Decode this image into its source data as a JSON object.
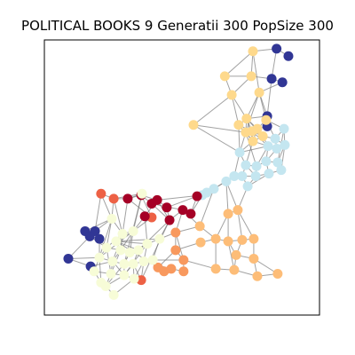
{
  "title": "POLITICAL BOOKS 9 Generatii 300 PopSize 300",
  "colors": {
    "edge": "#7a7a7a",
    "frame": "#000000",
    "background": "#ffffff",
    "palette": {
      "dark_blue": "#313695",
      "light_blue": "#c4e6f0",
      "light_orange": "#fed98c",
      "orange": "#fdbd78",
      "dark_orange": "#f8995e",
      "red_orange": "#ed6145",
      "crimson": "#a50026",
      "pale_yellow": "#f7fcd7"
    }
  },
  "chart_data": {
    "type": "network",
    "node_count": 105,
    "communities": [
      "dark_blue",
      "light_blue",
      "light_orange",
      "orange",
      "dark_orange",
      "red_orange",
      "crimson",
      "pale_yellow"
    ],
    "xlim": [
      0,
      1
    ],
    "ylim": [
      0,
      1
    ],
    "grid": false,
    "legend": "none",
    "nodes": [
      {
        "x": 0.844,
        "y": 0.968,
        "group": "dark_blue"
      },
      {
        "x": 0.887,
        "y": 0.941,
        "group": "dark_blue"
      },
      {
        "x": 0.826,
        "y": 0.859,
        "group": "dark_blue"
      },
      {
        "x": 0.865,
        "y": 0.846,
        "group": "dark_blue"
      },
      {
        "x": 0.81,
        "y": 0.723,
        "group": "dark_blue"
      },
      {
        "x": 0.81,
        "y": 0.686,
        "group": "dark_blue"
      },
      {
        "x": 0.148,
        "y": 0.305,
        "group": "dark_blue"
      },
      {
        "x": 0.184,
        "y": 0.305,
        "group": "dark_blue"
      },
      {
        "x": 0.165,
        "y": 0.286,
        "group": "dark_blue"
      },
      {
        "x": 0.2,
        "y": 0.277,
        "group": "dark_blue"
      },
      {
        "x": 0.087,
        "y": 0.205,
        "group": "dark_blue"
      },
      {
        "x": 0.168,
        "y": 0.177,
        "group": "dark_blue"
      },
      {
        "x": 0.758,
        "y": 0.959,
        "group": "light_orange"
      },
      {
        "x": 0.656,
        "y": 0.868,
        "group": "light_orange"
      },
      {
        "x": 0.752,
        "y": 0.868,
        "group": "light_orange"
      },
      {
        "x": 0.681,
        "y": 0.8,
        "group": "light_orange"
      },
      {
        "x": 0.781,
        "y": 0.809,
        "group": "light_orange"
      },
      {
        "x": 0.542,
        "y": 0.691,
        "group": "light_orange"
      },
      {
        "x": 0.706,
        "y": 0.691,
        "group": "light_orange"
      },
      {
        "x": 0.735,
        "y": 0.714,
        "group": "light_orange"
      },
      {
        "x": 0.774,
        "y": 0.677,
        "group": "light_orange"
      },
      {
        "x": 0.755,
        "y": 0.668,
        "group": "light_orange"
      },
      {
        "x": 0.732,
        "y": 0.664,
        "group": "light_orange"
      },
      {
        "x": 0.794,
        "y": 0.65,
        "group": "light_orange"
      },
      {
        "x": 0.758,
        "y": 0.632,
        "group": "light_orange"
      },
      {
        "x": 0.806,
        "y": 0.709,
        "group": "light_orange"
      },
      {
        "x": 0.839,
        "y": 0.641,
        "group": "light_blue"
      },
      {
        "x": 0.871,
        "y": 0.677,
        "group": "light_blue"
      },
      {
        "x": 0.874,
        "y": 0.618,
        "group": "light_blue"
      },
      {
        "x": 0.845,
        "y": 0.605,
        "group": "light_blue"
      },
      {
        "x": 0.813,
        "y": 0.614,
        "group": "light_blue"
      },
      {
        "x": 0.71,
        "y": 0.591,
        "group": "light_blue"
      },
      {
        "x": 0.732,
        "y": 0.545,
        "group": "light_blue"
      },
      {
        "x": 0.771,
        "y": 0.541,
        "group": "light_blue"
      },
      {
        "x": 0.806,
        "y": 0.559,
        "group": "light_blue"
      },
      {
        "x": 0.848,
        "y": 0.555,
        "group": "light_blue"
      },
      {
        "x": 0.861,
        "y": 0.527,
        "group": "light_blue"
      },
      {
        "x": 0.69,
        "y": 0.505,
        "group": "light_blue"
      },
      {
        "x": 0.719,
        "y": 0.505,
        "group": "light_blue"
      },
      {
        "x": 0.768,
        "y": 0.505,
        "group": "light_blue"
      },
      {
        "x": 0.816,
        "y": 0.514,
        "group": "light_blue"
      },
      {
        "x": 0.661,
        "y": 0.486,
        "group": "light_blue"
      },
      {
        "x": 0.739,
        "y": 0.468,
        "group": "light_blue"
      },
      {
        "x": 0.616,
        "y": 0.459,
        "group": "light_blue"
      },
      {
        "x": 0.59,
        "y": 0.445,
        "group": "light_blue"
      },
      {
        "x": 0.574,
        "y": 0.436,
        "group": "light_blue"
      },
      {
        "x": 0.668,
        "y": 0.368,
        "group": "orange"
      },
      {
        "x": 0.703,
        "y": 0.382,
        "group": "orange"
      },
      {
        "x": 0.565,
        "y": 0.323,
        "group": "orange"
      },
      {
        "x": 0.568,
        "y": 0.264,
        "group": "orange"
      },
      {
        "x": 0.623,
        "y": 0.277,
        "group": "orange"
      },
      {
        "x": 0.668,
        "y": 0.268,
        "group": "orange"
      },
      {
        "x": 0.719,
        "y": 0.273,
        "group": "orange"
      },
      {
        "x": 0.761,
        "y": 0.277,
        "group": "orange"
      },
      {
        "x": 0.697,
        "y": 0.218,
        "group": "orange"
      },
      {
        "x": 0.761,
        "y": 0.205,
        "group": "orange"
      },
      {
        "x": 0.623,
        "y": 0.168,
        "group": "orange"
      },
      {
        "x": 0.69,
        "y": 0.164,
        "group": "orange"
      },
      {
        "x": 0.774,
        "y": 0.141,
        "group": "orange"
      },
      {
        "x": 0.848,
        "y": 0.15,
        "group": "orange"
      },
      {
        "x": 0.477,
        "y": 0.3,
        "group": "dark_orange"
      },
      {
        "x": 0.477,
        "y": 0.236,
        "group": "dark_orange"
      },
      {
        "x": 0.506,
        "y": 0.2,
        "group": "dark_orange"
      },
      {
        "x": 0.461,
        "y": 0.168,
        "group": "dark_orange"
      },
      {
        "x": 0.413,
        "y": 0.173,
        "group": "dark_orange"
      },
      {
        "x": 0.506,
        "y": 0.159,
        "group": "dark_orange"
      },
      {
        "x": 0.435,
        "y": 0.159,
        "group": "dark_orange"
      },
      {
        "x": 0.206,
        "y": 0.441,
        "group": "red_orange"
      },
      {
        "x": 0.252,
        "y": 0.423,
        "group": "red_orange"
      },
      {
        "x": 0.39,
        "y": 0.355,
        "group": "red_orange"
      },
      {
        "x": 0.352,
        "y": 0.127,
        "group": "red_orange"
      },
      {
        "x": 0.303,
        "y": 0.423,
        "group": "crimson"
      },
      {
        "x": 0.352,
        "y": 0.436,
        "group": "crimson"
      },
      {
        "x": 0.41,
        "y": 0.418,
        "group": "crimson"
      },
      {
        "x": 0.445,
        "y": 0.391,
        "group": "crimson"
      },
      {
        "x": 0.39,
        "y": 0.405,
        "group": "crimson"
      },
      {
        "x": 0.555,
        "y": 0.432,
        "group": "crimson"
      },
      {
        "x": 0.532,
        "y": 0.368,
        "group": "crimson"
      },
      {
        "x": 0.503,
        "y": 0.382,
        "group": "crimson"
      },
      {
        "x": 0.455,
        "y": 0.345,
        "group": "crimson"
      },
      {
        "x": 0.365,
        "y": 0.359,
        "group": "crimson"
      },
      {
        "x": 0.355,
        "y": 0.441,
        "group": "pale_yellow"
      },
      {
        "x": 0.245,
        "y": 0.35,
        "group": "pale_yellow"
      },
      {
        "x": 0.284,
        "y": 0.295,
        "group": "pale_yellow"
      },
      {
        "x": 0.323,
        "y": 0.305,
        "group": "pale_yellow"
      },
      {
        "x": 0.261,
        "y": 0.268,
        "group": "pale_yellow"
      },
      {
        "x": 0.226,
        "y": 0.245,
        "group": "pale_yellow"
      },
      {
        "x": 0.277,
        "y": 0.236,
        "group": "pale_yellow"
      },
      {
        "x": 0.31,
        "y": 0.227,
        "group": "pale_yellow"
      },
      {
        "x": 0.342,
        "y": 0.236,
        "group": "pale_yellow"
      },
      {
        "x": 0.374,
        "y": 0.259,
        "group": "pale_yellow"
      },
      {
        "x": 0.419,
        "y": 0.277,
        "group": "pale_yellow"
      },
      {
        "x": 0.2,
        "y": 0.209,
        "group": "pale_yellow"
      },
      {
        "x": 0.248,
        "y": 0.195,
        "group": "pale_yellow"
      },
      {
        "x": 0.29,
        "y": 0.186,
        "group": "pale_yellow"
      },
      {
        "x": 0.323,
        "y": 0.186,
        "group": "pale_yellow"
      },
      {
        "x": 0.361,
        "y": 0.195,
        "group": "pale_yellow"
      },
      {
        "x": 0.394,
        "y": 0.2,
        "group": "pale_yellow"
      },
      {
        "x": 0.181,
        "y": 0.159,
        "group": "pale_yellow"
      },
      {
        "x": 0.242,
        "y": 0.15,
        "group": "pale_yellow"
      },
      {
        "x": 0.29,
        "y": 0.145,
        "group": "pale_yellow"
      },
      {
        "x": 0.223,
        "y": 0.105,
        "group": "pale_yellow"
      },
      {
        "x": 0.326,
        "y": 0.132,
        "group": "pale_yellow"
      },
      {
        "x": 0.252,
        "y": 0.073,
        "group": "pale_yellow"
      },
      {
        "x": 0.206,
        "y": 0.118,
        "group": "pale_yellow"
      }
    ],
    "edges": [
      [
        0,
        1
      ],
      [
        0,
        2
      ],
      [
        0,
        12
      ],
      [
        2,
        3
      ],
      [
        2,
        4
      ],
      [
        2,
        14
      ],
      [
        3,
        16
      ],
      [
        4,
        5
      ],
      [
        4,
        16
      ],
      [
        4,
        19
      ],
      [
        5,
        20
      ],
      [
        5,
        25
      ],
      [
        12,
        13
      ],
      [
        12,
        14
      ],
      [
        12,
        16
      ],
      [
        13,
        15
      ],
      [
        13,
        14
      ],
      [
        14,
        15
      ],
      [
        15,
        17
      ],
      [
        15,
        18
      ],
      [
        15,
        19
      ],
      [
        16,
        19
      ],
      [
        16,
        25
      ],
      [
        17,
        22
      ],
      [
        17,
        31
      ],
      [
        18,
        19
      ],
      [
        18,
        21
      ],
      [
        18,
        22
      ],
      [
        18,
        31
      ],
      [
        19,
        20
      ],
      [
        19,
        21
      ],
      [
        19,
        22
      ],
      [
        19,
        24
      ],
      [
        20,
        21
      ],
      [
        20,
        23
      ],
      [
        20,
        24
      ],
      [
        20,
        25
      ],
      [
        21,
        22
      ],
      [
        21,
        23
      ],
      [
        21,
        24
      ],
      [
        22,
        24
      ],
      [
        22,
        31
      ],
      [
        23,
        24
      ],
      [
        23,
        26
      ],
      [
        23,
        30
      ],
      [
        24,
        30
      ],
      [
        24,
        31
      ],
      [
        24,
        32
      ],
      [
        25,
        26
      ],
      [
        25,
        27
      ],
      [
        26,
        27
      ],
      [
        26,
        28
      ],
      [
        26,
        29
      ],
      [
        27,
        28
      ],
      [
        28,
        29
      ],
      [
        28,
        35
      ],
      [
        29,
        30
      ],
      [
        29,
        34
      ],
      [
        30,
        31
      ],
      [
        30,
        33
      ],
      [
        30,
        34
      ],
      [
        31,
        32
      ],
      [
        31,
        37
      ],
      [
        32,
        33
      ],
      [
        32,
        38
      ],
      [
        33,
        34
      ],
      [
        33,
        39
      ],
      [
        34,
        35
      ],
      [
        34,
        40
      ],
      [
        35,
        36
      ],
      [
        36,
        40
      ],
      [
        37,
        38
      ],
      [
        37,
        41
      ],
      [
        38,
        39
      ],
      [
        38,
        42
      ],
      [
        39,
        40
      ],
      [
        39,
        42
      ],
      [
        40,
        42
      ],
      [
        41,
        43
      ],
      [
        42,
        47
      ],
      [
        43,
        44
      ],
      [
        44,
        45
      ],
      [
        45,
        76
      ],
      [
        37,
        43
      ],
      [
        16,
        22
      ],
      [
        18,
        24
      ],
      [
        19,
        23
      ],
      [
        22,
        33
      ],
      [
        21,
        30
      ],
      [
        32,
        39
      ],
      [
        36,
        28
      ],
      [
        27,
        35
      ],
      [
        41,
        46
      ],
      [
        46,
        47
      ],
      [
        46,
        50
      ],
      [
        46,
        51
      ],
      [
        47,
        53
      ],
      [
        47,
        52
      ],
      [
        48,
        50
      ],
      [
        48,
        60
      ],
      [
        49,
        50
      ],
      [
        49,
        61
      ],
      [
        50,
        51
      ],
      [
        50,
        56
      ],
      [
        51,
        52
      ],
      [
        51,
        54
      ],
      [
        51,
        57
      ],
      [
        52,
        53
      ],
      [
        52,
        54
      ],
      [
        53,
        55
      ],
      [
        54,
        55
      ],
      [
        54,
        57
      ],
      [
        55,
        58
      ],
      [
        55,
        59
      ],
      [
        56,
        57
      ],
      [
        56,
        62
      ],
      [
        57,
        58
      ],
      [
        58,
        59
      ],
      [
        43,
        48
      ],
      [
        41,
        47
      ],
      [
        44,
        76
      ],
      [
        45,
        77
      ],
      [
        60,
        61
      ],
      [
        60,
        62
      ],
      [
        61,
        62
      ],
      [
        62,
        65
      ],
      [
        63,
        66
      ],
      [
        64,
        66
      ],
      [
        63,
        65
      ],
      [
        60,
        91
      ],
      [
        61,
        64
      ],
      [
        64,
        97
      ],
      [
        63,
        96
      ],
      [
        67,
        68
      ],
      [
        67,
        82
      ],
      [
        68,
        71
      ],
      [
        68,
        82
      ],
      [
        68,
        83
      ],
      [
        69,
        72
      ],
      [
        69,
        80
      ],
      [
        69,
        84
      ],
      [
        70,
        95
      ],
      [
        70,
        96
      ],
      [
        71,
        72
      ],
      [
        71,
        81
      ],
      [
        71,
        83
      ],
      [
        72,
        73
      ],
      [
        72,
        75
      ],
      [
        73,
        74
      ],
      [
        73,
        79
      ],
      [
        74,
        79
      ],
      [
        75,
        78
      ],
      [
        75,
        79
      ],
      [
        76,
        77
      ],
      [
        77,
        78
      ],
      [
        78,
        79
      ],
      [
        78,
        60
      ],
      [
        79,
        91
      ],
      [
        80,
        84
      ],
      [
        80,
        90
      ],
      [
        81,
        84
      ],
      [
        82,
        83
      ],
      [
        82,
        86
      ],
      [
        82,
        6
      ],
      [
        83,
        84
      ],
      [
        83,
        86
      ],
      [
        83,
        87
      ],
      [
        84,
        85
      ],
      [
        84,
        87
      ],
      [
        84,
        88
      ],
      [
        85,
        90
      ],
      [
        85,
        91
      ],
      [
        86,
        87
      ],
      [
        86,
        92
      ],
      [
        87,
        88
      ],
      [
        87,
        93
      ],
      [
        88,
        89
      ],
      [
        88,
        94
      ],
      [
        89,
        90
      ],
      [
        89,
        95
      ],
      [
        90,
        91
      ],
      [
        90,
        96
      ],
      [
        91,
        97
      ],
      [
        92,
        93
      ],
      [
        92,
        98
      ],
      [
        93,
        94
      ],
      [
        93,
        99
      ],
      [
        94,
        95
      ],
      [
        94,
        100
      ],
      [
        95,
        96
      ],
      [
        95,
        102
      ],
      [
        96,
        97
      ],
      [
        96,
        102
      ],
      [
        98,
        99
      ],
      [
        98,
        104
      ],
      [
        99,
        100
      ],
      [
        99,
        101
      ],
      [
        100,
        101
      ],
      [
        100,
        102
      ],
      [
        101,
        103
      ],
      [
        101,
        104
      ],
      [
        102,
        103
      ],
      [
        6,
        7
      ],
      [
        6,
        8
      ],
      [
        7,
        8
      ],
      [
        7,
        9
      ],
      [
        8,
        9
      ],
      [
        8,
        86
      ],
      [
        9,
        86
      ],
      [
        9,
        92
      ],
      [
        10,
        11
      ],
      [
        10,
        92
      ],
      [
        11,
        98
      ],
      [
        11,
        93
      ],
      [
        7,
        82
      ],
      [
        10,
        8
      ],
      [
        67,
        7
      ],
      [
        68,
        81
      ],
      [
        73,
        45
      ],
      [
        76,
        74
      ],
      [
        80,
        73
      ],
      [
        81,
        94
      ],
      [
        89,
        79
      ],
      [
        85,
        64
      ],
      [
        97,
        62
      ],
      [
        92,
        104
      ],
      [
        99,
        87
      ],
      [
        94,
        88
      ],
      [
        100,
        90
      ],
      [
        86,
        99
      ],
      [
        93,
        100
      ],
      [
        84,
        92
      ],
      [
        83,
        93
      ],
      [
        82,
        92
      ],
      [
        85,
        89
      ],
      [
        88,
        90
      ],
      [
        94,
        101
      ],
      [
        95,
        100
      ],
      [
        69,
        71
      ],
      [
        70,
        79
      ],
      [
        48,
        78
      ]
    ]
  }
}
